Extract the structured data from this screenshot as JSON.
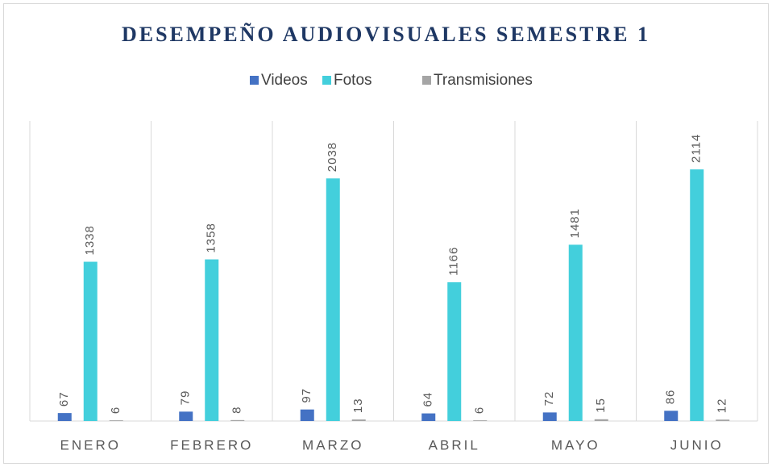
{
  "chart_data": {
    "type": "bar",
    "title": "DESEMPEÑO AUDIOVISUALES SEMESTRE 1",
    "categories": [
      "ENERO",
      "FEBRERO",
      "MARZO",
      "ABRIL",
      "MAYO",
      "JUNIO"
    ],
    "series": [
      {
        "name": "Videos",
        "color": "#4472c4",
        "values": [
          67,
          79,
          97,
          64,
          72,
          86
        ]
      },
      {
        "name": "Fotos",
        "color": "#43cfdc",
        "values": [
          1338,
          1358,
          2038,
          1166,
          1481,
          2114
        ]
      },
      {
        "name": "Transmisiones",
        "color": "#a5a5a5",
        "values": [
          6,
          8,
          13,
          6,
          15,
          12
        ]
      }
    ],
    "legend": "top"
  }
}
